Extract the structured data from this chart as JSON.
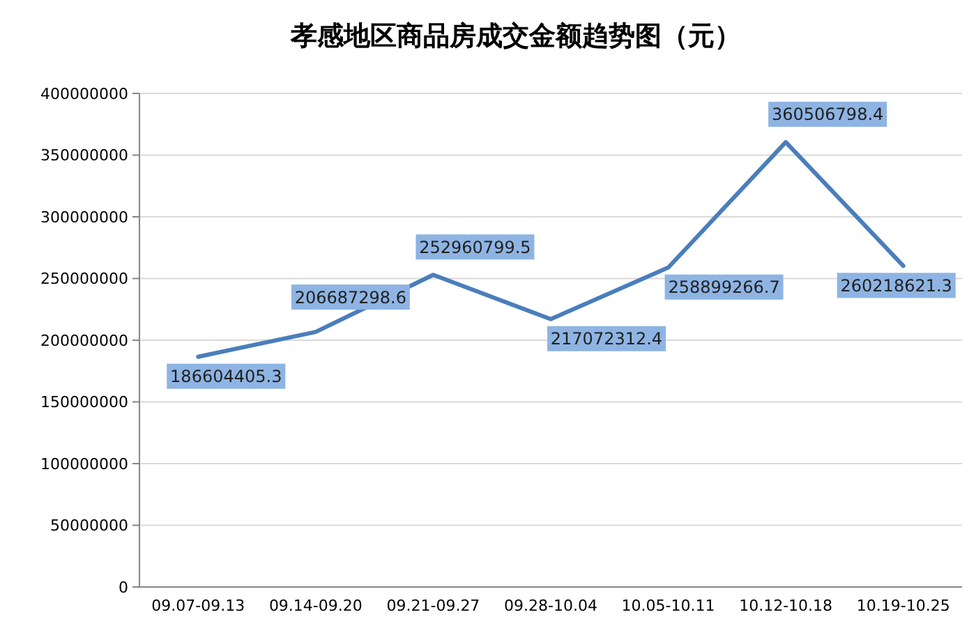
{
  "chart_data": {
    "type": "line",
    "title": "孝感地区商品房成交金额趋势图（元）",
    "categories": [
      "09.07-09.13",
      "09.14-09.20",
      "09.21-09.27",
      "09.28-10.04",
      "10.05-10.11",
      "10.12-10.18",
      "10.19-10.25"
    ],
    "series": [
      {
        "color": "#4a7ebb",
        "values": [
          186604405.3,
          206687298.6,
          252960799.5,
          217072312.4,
          258899266.7,
          360506798.4,
          260218621.3
        ]
      }
    ],
    "ylim": [
      0,
      400000000
    ],
    "yticks": [
      0,
      50000000,
      100000000,
      150000000,
      200000000,
      250000000,
      300000000,
      350000000,
      400000000
    ],
    "grid": "y",
    "data_labels": true,
    "marker": "none",
    "line_style": "solid"
  }
}
